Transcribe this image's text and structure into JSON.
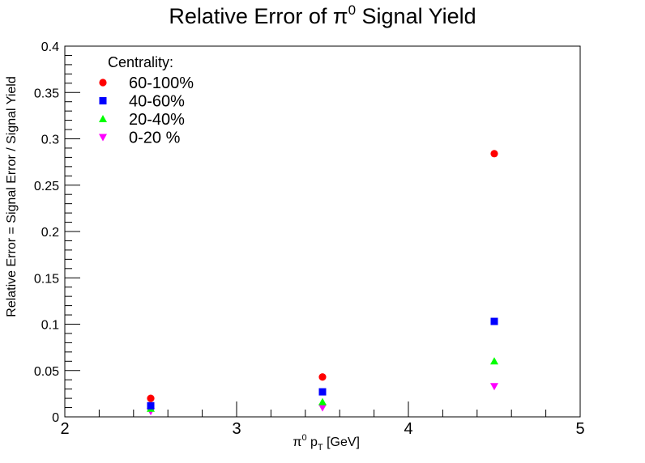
{
  "chart_data": {
    "type": "scatter",
    "title": "Relative Error of π",
    "title_superscript": "0",
    "title_suffix": " Signal Yield",
    "xlabel_pi": "π",
    "xlabel_sup": "0",
    "xlabel_mid": " p",
    "xlabel_sub": "T",
    "xlabel_unit": " [GeV]",
    "ylabel": "Relative Error = Signal Error / Signal Yield",
    "xlim": [
      2,
      5
    ],
    "ylim": [
      0,
      0.4
    ],
    "x_major_ticks": [
      2,
      3,
      4,
      5
    ],
    "x_tick_labels": [
      "2",
      "3",
      "4",
      "5"
    ],
    "y_major_ticks": [
      0,
      0.05,
      0.1,
      0.15,
      0.2,
      0.25,
      0.3,
      0.35,
      0.4
    ],
    "y_tick_labels": [
      "0",
      "0.05",
      "0.1",
      "0.15",
      "0.2",
      "0.25",
      "0.3",
      "0.35",
      "0.4"
    ],
    "grid": false,
    "legend": {
      "title": "Centrality:",
      "placement": "top-left"
    },
    "series": [
      {
        "name": "60-100%",
        "marker": "circle",
        "color": "#ff0000",
        "x": [
          2.5,
          3.5,
          4.5
        ],
        "y": [
          0.02,
          0.043,
          0.284
        ]
      },
      {
        "name": "40-60%",
        "marker": "square",
        "color": "#0000ff",
        "x": [
          2.5,
          3.5,
          4.5
        ],
        "y": [
          0.012,
          0.027,
          0.103
        ]
      },
      {
        "name": "20-40%",
        "marker": "triangle-up",
        "color": "#00ff00",
        "x": [
          2.5,
          3.5,
          4.5
        ],
        "y": [
          0.009,
          0.016,
          0.06
        ]
      },
      {
        "name": "0-20 %",
        "marker": "triangle-down",
        "color": "#ff00ff",
        "x": [
          2.5,
          3.5,
          4.5
        ],
        "y": [
          0.006,
          0.01,
          0.033
        ]
      }
    ]
  }
}
